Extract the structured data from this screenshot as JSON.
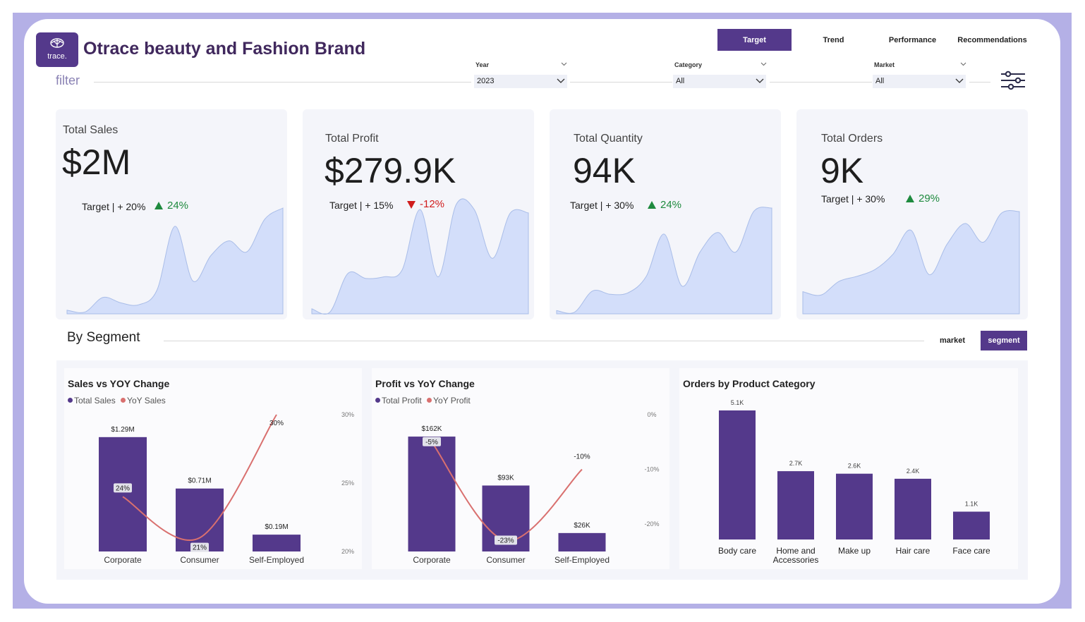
{
  "header": {
    "brand_logo_text": "trace.",
    "title": "Otrace beauty and Fashion Brand",
    "tabs": [
      {
        "label": "Target",
        "active": true
      },
      {
        "label": "Trend",
        "active": false
      },
      {
        "label": "Performance",
        "active": false
      },
      {
        "label": "Recommendations",
        "active": false
      }
    ]
  },
  "filters": {
    "label": "filter",
    "year": {
      "label": "Year",
      "value": "2023"
    },
    "category": {
      "label": "Category",
      "value": "All"
    },
    "market": {
      "label": "Market",
      "value": "All"
    },
    "settings_icon": "sliders-icon"
  },
  "kpis": [
    {
      "title": "Total Sales",
      "value": "$2M",
      "target": "Target | + 20%",
      "delta": "24%",
      "direction": "up",
      "sparkline": [
        2,
        1,
        9,
        6,
        5,
        13,
        48,
        18,
        32,
        40,
        34,
        52,
        58
      ]
    },
    {
      "title": "Total Profit",
      "value": "$279.9K",
      "target": "Target | + 15%",
      "delta": "-12%",
      "direction": "down",
      "sparkline": [
        3,
        1,
        24,
        21,
        22,
        26,
        62,
        22,
        65,
        62,
        33,
        60,
        60
      ]
    },
    {
      "title": "Total Quantity",
      "value": "94K",
      "target": "Target | + 30%",
      "delta": "24%",
      "direction": "up",
      "sparkline": [
        2,
        1,
        14,
        12,
        13,
        23,
        49,
        17,
        38,
        50,
        38,
        63,
        65
      ]
    },
    {
      "title": "Total Orders",
      "value": "9K",
      "target": "Target | + 30%",
      "delta": "29%",
      "direction": "up",
      "sparkline": [
        13,
        11,
        19,
        22,
        26,
        35,
        49,
        23,
        41,
        53,
        42,
        59,
        60
      ]
    }
  ],
  "segment_section": {
    "title": "By Segment",
    "toggles": [
      {
        "label": "market",
        "active": false
      },
      {
        "label": "segment",
        "active": true
      }
    ]
  },
  "colors": {
    "bar": "#54398b",
    "line": "#d9706f",
    "area": "#d3defa",
    "accent": "#54398b"
  },
  "chart_data": [
    {
      "type": "bar",
      "title": "Sales vs YOY Change",
      "categories": [
        "Corporate",
        "Consumer",
        "Self-Employed"
      ],
      "series": [
        {
          "name": "Total Sales",
          "values": [
            1.29,
            0.71,
            0.19
          ],
          "labels": [
            "$1.29M",
            "$0.71M",
            "$0.19M"
          ]
        },
        {
          "name": "YoY Sales",
          "type": "line",
          "values": [
            24,
            21,
            30
          ],
          "labels": [
            "24%",
            "21%",
            "30%"
          ]
        }
      ],
      "ylim": [
        0,
        1.4
      ],
      "y2ticks": [
        "30%",
        "25%",
        "20%"
      ],
      "y2lim": [
        20,
        30
      ]
    },
    {
      "type": "bar",
      "title": "Profit vs YoY Change",
      "categories": [
        "Corporate",
        "Consumer",
        "Self-Employed"
      ],
      "series": [
        {
          "name": "Total Profit",
          "values": [
            162,
            93,
            26
          ],
          "labels": [
            "$162K",
            "$93K",
            "$26K"
          ]
        },
        {
          "name": "YoY Profit",
          "type": "line",
          "values": [
            -5,
            -23,
            -10
          ],
          "labels": [
            "-5%",
            "-23%",
            "-10%"
          ]
        }
      ],
      "ylim": [
        0,
        175
      ],
      "y2ticks": [
        "0%",
        "-10%",
        "-20%"
      ],
      "y2lim": [
        -25,
        0
      ]
    },
    {
      "type": "bar",
      "title": "Orders by Product Category",
      "categories": [
        "Body care",
        "Home and Accessories",
        "Make up",
        "Hair care",
        "Face care"
      ],
      "series": [
        {
          "name": "Orders",
          "values": [
            5.1,
            2.7,
            2.6,
            2.4,
            1.1
          ],
          "labels": [
            "5.1K",
            "2.7K",
            "2.6K",
            "2.4K",
            "1.1K"
          ]
        }
      ],
      "ylim": [
        0,
        5.1
      ]
    }
  ]
}
